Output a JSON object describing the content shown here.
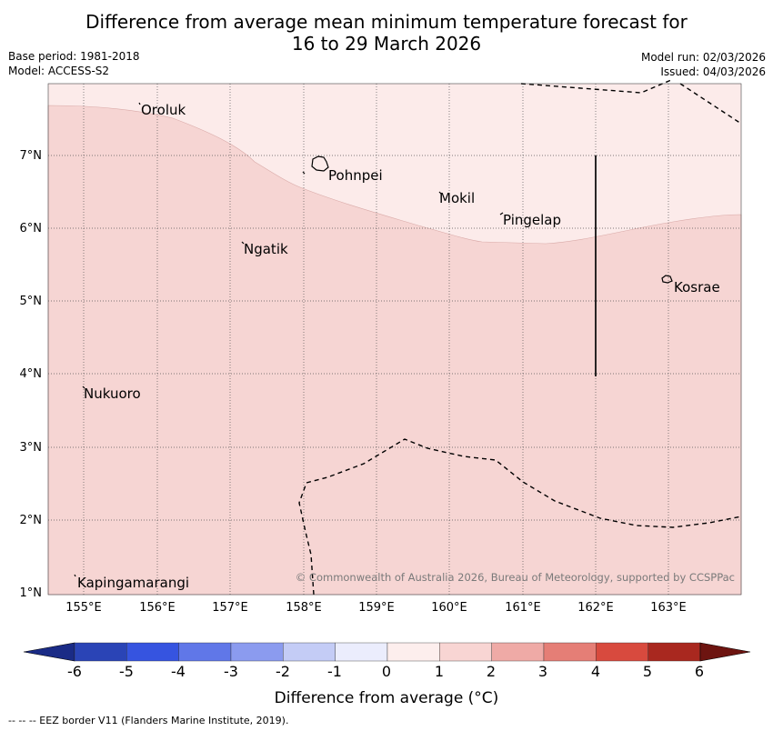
{
  "title": {
    "line1": "Difference from average mean minimum temperature forecast for",
    "line2": "16 to 29 March 2026"
  },
  "meta": {
    "base_period": "Base period: 1981-2018",
    "model": "Model: ACCESS-S2",
    "model_run": "Model run: 02/03/2026",
    "issued": "Issued: 04/03/2026"
  },
  "map": {
    "places": [
      {
        "name": "Oroluk"
      },
      {
        "name": "Pohnpei"
      },
      {
        "name": "Mokil"
      },
      {
        "name": "Pingelap"
      },
      {
        "name": "Ngatik"
      },
      {
        "name": "Kosrae"
      },
      {
        "name": "Nukuoro"
      },
      {
        "name": "Kapingamarangi"
      }
    ],
    "lat_labels": [
      "7°N",
      "6°N",
      "5°N",
      "4°N",
      "3°N",
      "2°N",
      "1°N"
    ],
    "lon_labels": [
      "155°E",
      "156°E",
      "157°E",
      "158°E",
      "159°E",
      "160°E",
      "161°E",
      "162°E",
      "163°E"
    ],
    "copyright": "© Commonwealth of Australia 2026, Bureau of Meteorology, supported by CCSPPac",
    "fill_colors": {
      "band_0_to_1": "#fcebea",
      "band_1_to_2": "#f6d5d3"
    }
  },
  "colorbar": {
    "ticks": [
      "-6",
      "-5",
      "-4",
      "-3",
      "-2",
      "-1",
      "0",
      "1",
      "2",
      "3",
      "4",
      "5",
      "6"
    ],
    "colors": [
      "#1a2b86",
      "#2a44b6",
      "#3654e0",
      "#6077e8",
      "#8b9bef",
      "#c4ccf6",
      "#ebedfd",
      "#fdeeed",
      "#f8d5d3",
      "#efaaa6",
      "#e57e76",
      "#d84a3e",
      "#a9281f",
      "#6d1410"
    ],
    "title": "Difference from average (°C)"
  },
  "footnote": "--  --  -- EEZ border V11 (Flanders Marine Institute, 2019)."
}
